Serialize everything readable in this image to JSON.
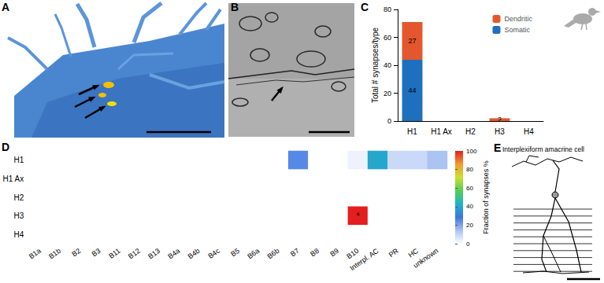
{
  "panel_labels": [
    "A",
    "B",
    "C",
    "D",
    "E"
  ],
  "diagram": {
    "title": "Interplexiform amacrine cell"
  },
  "chart_data": [
    {
      "type": "bar",
      "stacked": true,
      "categories": [
        "H1",
        "H1 Ax",
        "H2",
        "H3",
        "H4"
      ],
      "series": [
        {
          "name": "Somatic",
          "color": "#1f6fbf",
          "values": [
            44,
            null,
            null,
            null,
            null
          ]
        },
        {
          "name": "Dendritic",
          "color": "#e4572e",
          "values": [
            27,
            null,
            null,
            2,
            null
          ]
        }
      ],
      "ylabel": "Total # synapses/type",
      "ylim": [
        0,
        80
      ],
      "yticks": [
        0,
        20,
        40,
        60,
        80
      ],
      "data_labels": true,
      "legend": "upper right"
    },
    {
      "type": "heatmap",
      "categories": [
        "B1a",
        "B1b",
        "B2",
        "B3",
        "B11",
        "B12",
        "B13",
        "B4a",
        "B4b",
        "B4c",
        "B5",
        "B6a",
        "B6b",
        "B7",
        "B8",
        "B9",
        "B10",
        "Interpl. AC",
        "PR",
        "HC",
        "unknown"
      ],
      "rows": [
        "H1",
        "H1 Ax",
        "H2",
        "H3",
        "H4"
      ],
      "values": [
        [
          0,
          0,
          0,
          0,
          0,
          0,
          0,
          0,
          0,
          0,
          0,
          0,
          0,
          25,
          0,
          0,
          3,
          40,
          9,
          9,
          14
        ],
        [
          0,
          0,
          0,
          0,
          0,
          0,
          0,
          0,
          0,
          0,
          0,
          0,
          0,
          0,
          0,
          0,
          0,
          0,
          0,
          0,
          0
        ],
        [
          0,
          0,
          0,
          0,
          0,
          0,
          0,
          0,
          0,
          0,
          0,
          0,
          0,
          0,
          0,
          0,
          0,
          0,
          0,
          0,
          0
        ],
        [
          0,
          0,
          0,
          0,
          0,
          0,
          0,
          0,
          0,
          0,
          0,
          0,
          0,
          0,
          0,
          0,
          100,
          0,
          0,
          0,
          0
        ],
        [
          0,
          0,
          0,
          0,
          0,
          0,
          0,
          0,
          0,
          0,
          0,
          0,
          0,
          0,
          0,
          0,
          0,
          0,
          0,
          0,
          0
        ]
      ],
      "colorbar": {
        "label": "Fraction of synapses %",
        "range": [
          0,
          100
        ],
        "ticks": [
          0,
          20,
          40,
          60,
          80,
          100
        ]
      },
      "annotations": [
        {
          "text": "*",
          "row": "H3",
          "col": "B10"
        }
      ]
    }
  ]
}
